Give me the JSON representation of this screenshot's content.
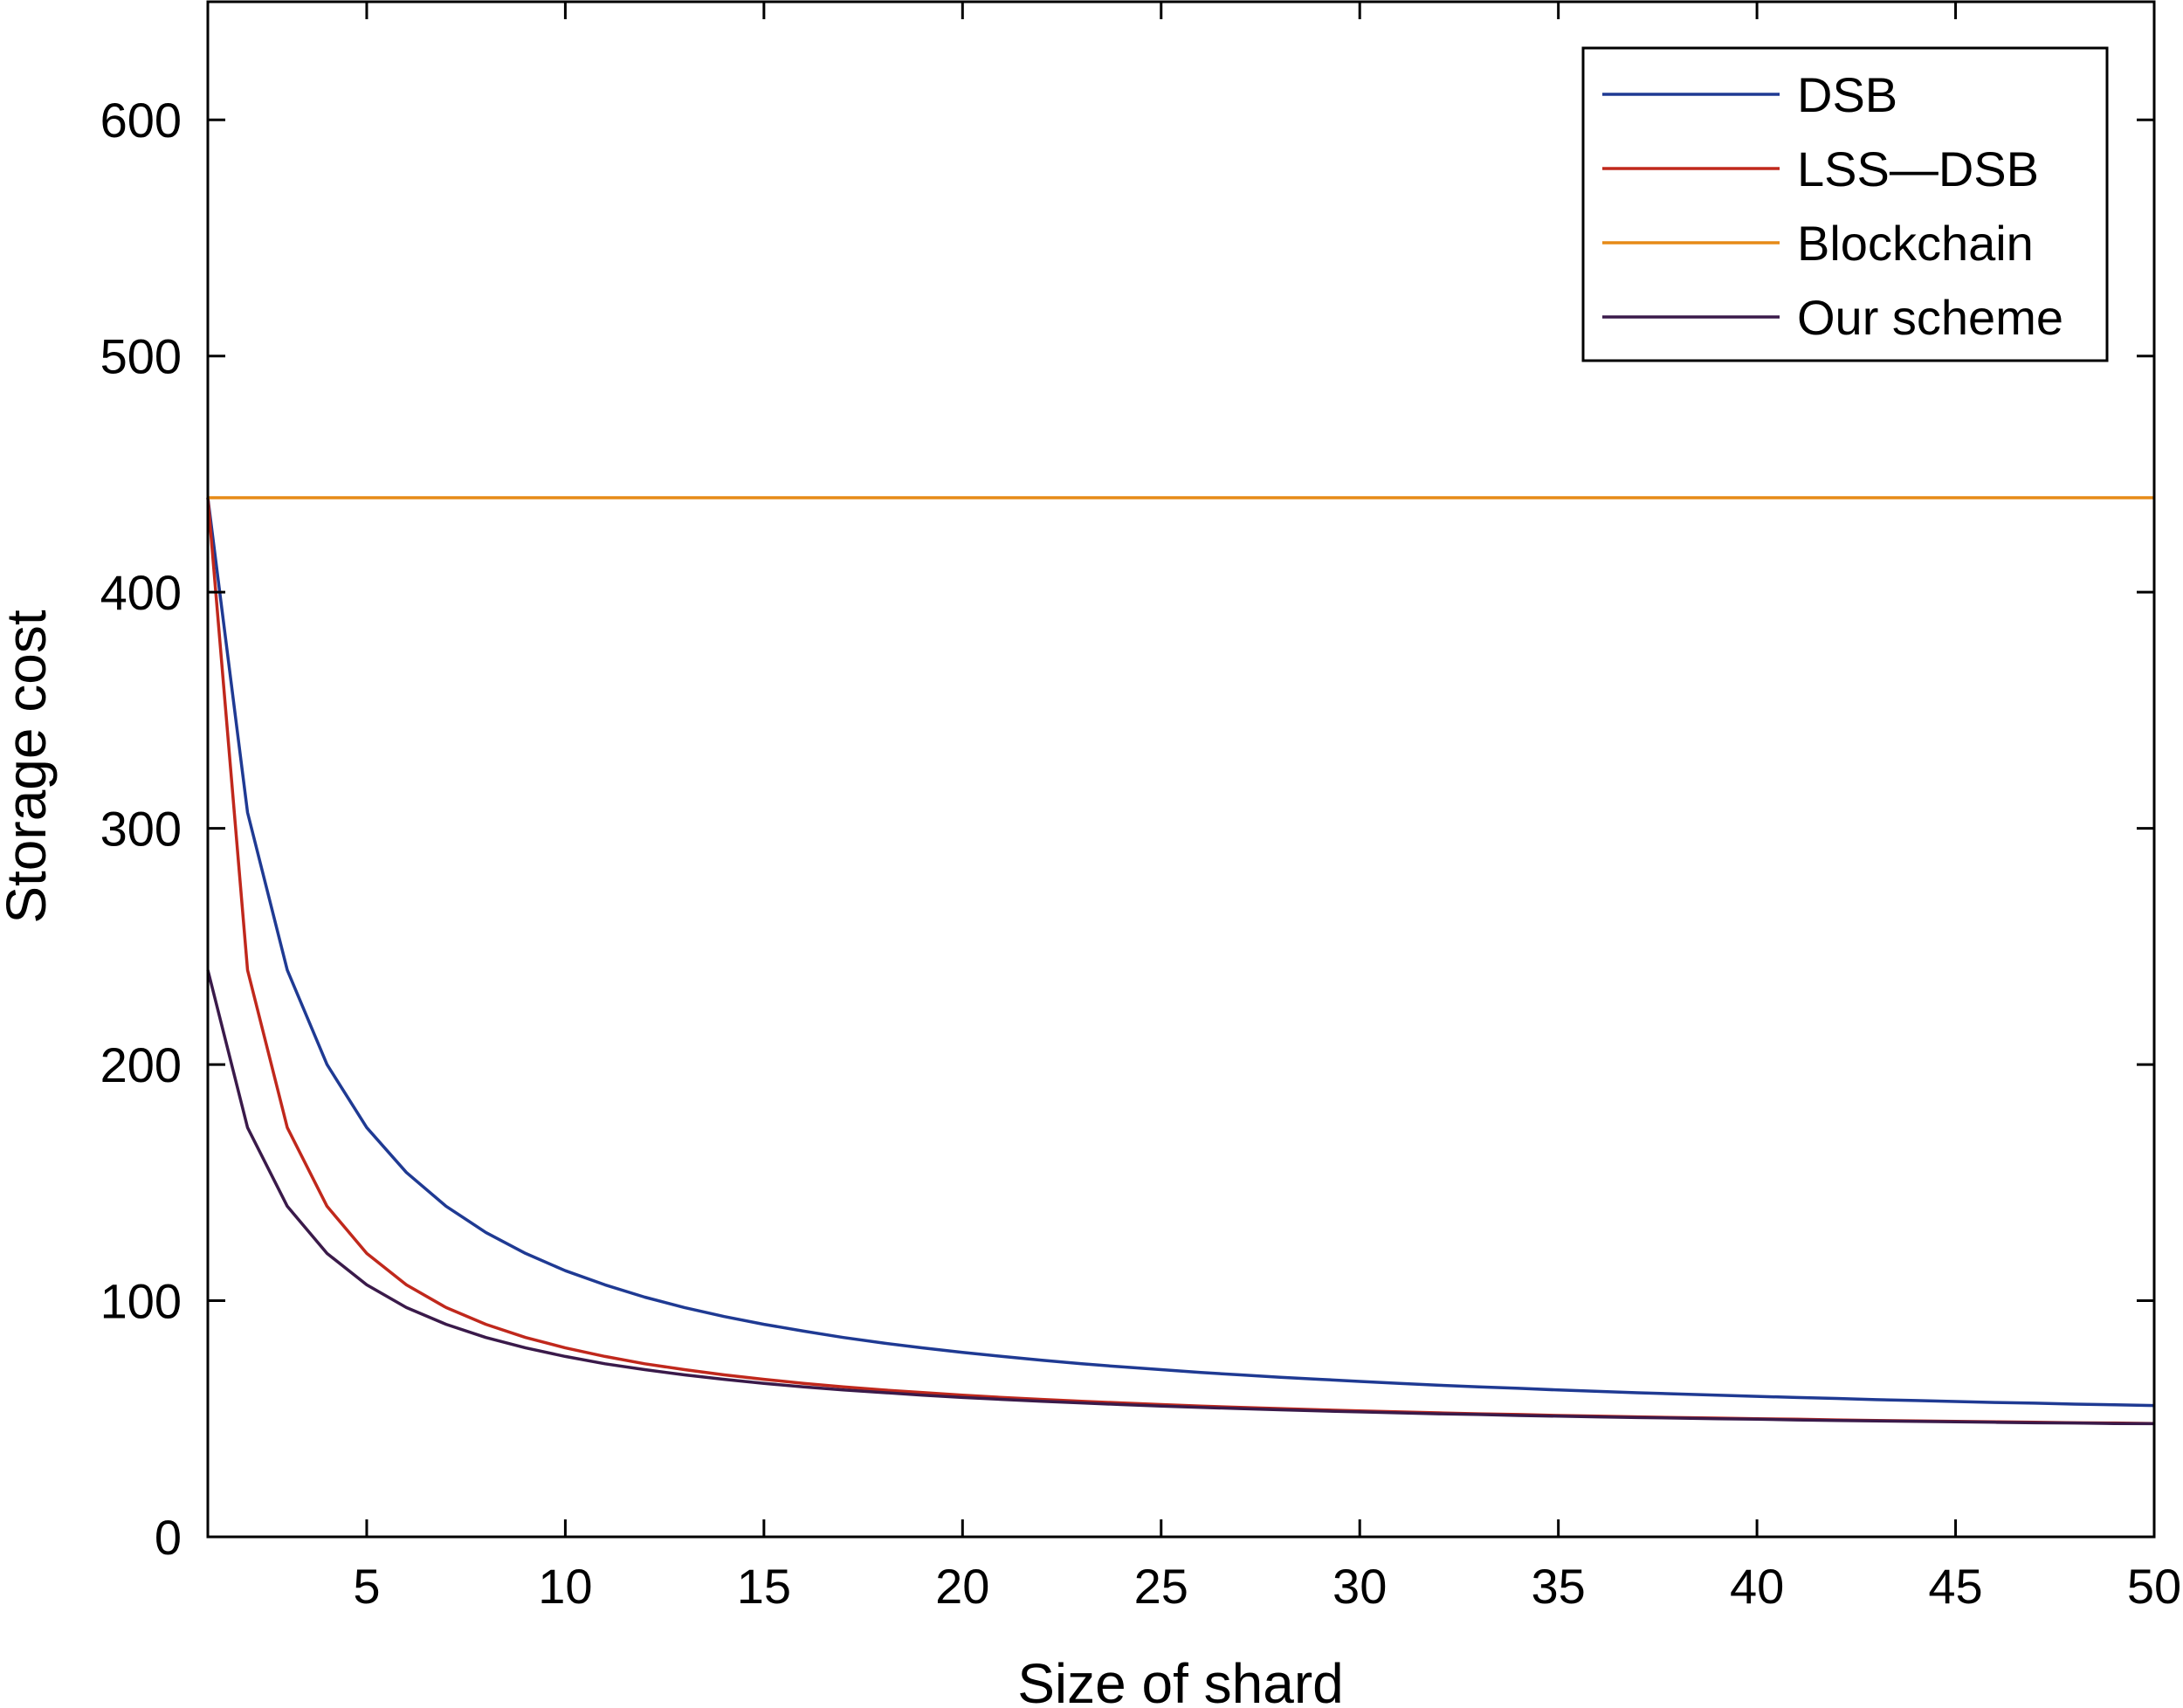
{
  "chart_data": {
    "type": "line",
    "xlabel": "Size of shard",
    "ylabel": "Storage cost",
    "xlim": [
      1,
      50
    ],
    "ylim": [
      0,
      650
    ],
    "xticks": [
      5,
      10,
      15,
      20,
      25,
      30,
      35,
      40,
      45,
      50
    ],
    "yticks": [
      0,
      100,
      200,
      300,
      400,
      500,
      600
    ],
    "grid": false,
    "legend_position": "top-right",
    "x": [
      1,
      2,
      3,
      4,
      5,
      6,
      7,
      8,
      9,
      10,
      11,
      12,
      13,
      14,
      15,
      16,
      17,
      18,
      19,
      20,
      21,
      22,
      23,
      24,
      25,
      26,
      27,
      28,
      29,
      30,
      31,
      32,
      33,
      34,
      35,
      36,
      37,
      38,
      39,
      40,
      41,
      42,
      43,
      44,
      45,
      46,
      47,
      48,
      49,
      50
    ],
    "series": [
      {
        "name": "DSB",
        "color": "#1f3a93",
        "values": [
          440,
          306.7,
          240,
          200,
          173.3,
          154.3,
          140,
          128.9,
          120,
          112.7,
          106.7,
          101.5,
          97.1,
          93.3,
          90,
          87.1,
          84.4,
          82.1,
          80,
          78.1,
          76.4,
          74.8,
          73.3,
          72,
          70.8,
          69.6,
          68.6,
          67.6,
          66.7,
          65.8,
          65,
          64.2,
          63.5,
          62.9,
          62.2,
          61.6,
          61,
          60.5,
          60,
          59.5,
          59,
          58.6,
          58.1,
          57.7,
          57.3,
          56.9,
          56.6,
          56.2,
          55.9,
          55.6
        ]
      },
      {
        "name": "LSS—DSB",
        "color": "#c0281c",
        "values": [
          440,
          240,
          173.3,
          140,
          120,
          106.7,
          97.1,
          90,
          84.4,
          80,
          76.4,
          73.3,
          70.8,
          68.6,
          66.7,
          65,
          63.5,
          62.2,
          61.1,
          60,
          59,
          58.2,
          57.4,
          56.7,
          56,
          55.4,
          54.8,
          54.3,
          53.8,
          53.3,
          52.9,
          52.5,
          52.1,
          51.8,
          51.4,
          51.1,
          50.8,
          50.5,
          50.3,
          50,
          49.8,
          49.5,
          49.3,
          49.1,
          48.9,
          48.7,
          48.5,
          48.3,
          48.2,
          48
        ]
      },
      {
        "name": "Blockchain",
        "color": "#e68a17",
        "values": [
          440,
          440,
          440,
          440,
          440,
          440,
          440,
          440,
          440,
          440,
          440,
          440,
          440,
          440,
          440,
          440,
          440,
          440,
          440,
          440,
          440,
          440,
          440,
          440,
          440,
          440,
          440,
          440,
          440,
          440,
          440,
          440,
          440,
          440,
          440,
          440,
          440,
          440,
          440,
          440,
          440,
          440,
          440,
          440,
          440,
          440,
          440,
          440,
          440,
          440
        ]
      },
      {
        "name": "Our scheme",
        "color": "#3a1a4a",
        "values": [
          240,
          173.3,
          140,
          120,
          106.7,
          97.1,
          90,
          84.4,
          80,
          76.4,
          73.3,
          70.8,
          68.6,
          66.7,
          65,
          63.5,
          62.2,
          61.1,
          60,
          59,
          58.2,
          57.4,
          56.7,
          56,
          55.4,
          54.8,
          54.3,
          53.8,
          53.3,
          52.9,
          52.5,
          52.1,
          51.8,
          51.4,
          51.1,
          50.8,
          50.5,
          50.3,
          50,
          49.8,
          49.5,
          49.3,
          49.1,
          48.9,
          48.7,
          48.5,
          48.3,
          48.2,
          48,
          47.9
        ]
      }
    ]
  }
}
